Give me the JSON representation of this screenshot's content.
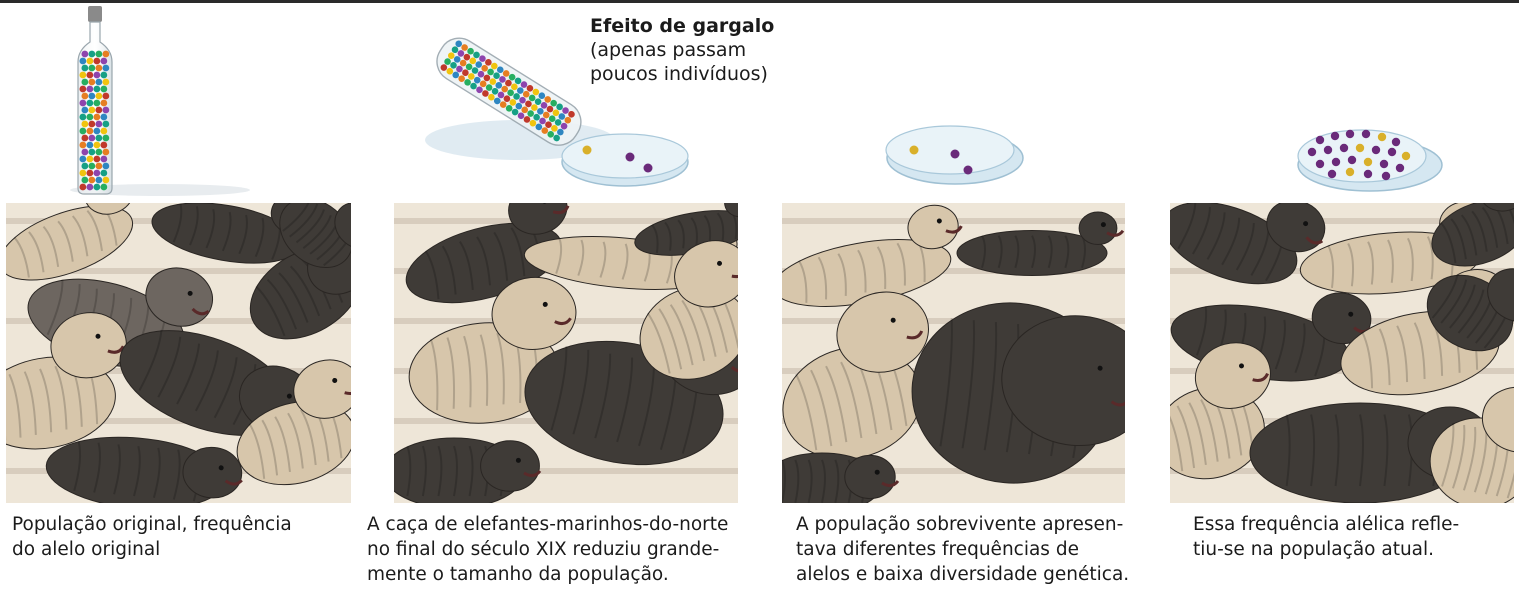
{
  "bottleneck_label": {
    "title": "Efeito de gargalo",
    "lines": [
      "(apenas passam",
      "poucos indivíduos)"
    ]
  },
  "captions": [
    {
      "lines": [
        "População original, frequência",
        "do alelo original"
      ]
    },
    {
      "lines": [
        "A caça de elefantes-marinhos-do-norte",
        "no final do século XIX reduziu grande-",
        "mente o tamanho da população."
      ]
    },
    {
      "lines": [
        "A população sobrevivente apresen-",
        "tava diferentes frequências de",
        "alelos e baixa diversidade genética."
      ]
    },
    {
      "lines": [
        "Essa frequência alélica refle-",
        "tiu-se na população atual."
      ]
    }
  ],
  "colors": {
    "seal_dark": "#3d3935",
    "seal_light": "#d8c7ad",
    "bead_purple": "#6a2a7a",
    "bead_yellow": "#d9b02a",
    "dish": "#bcd6e6"
  }
}
